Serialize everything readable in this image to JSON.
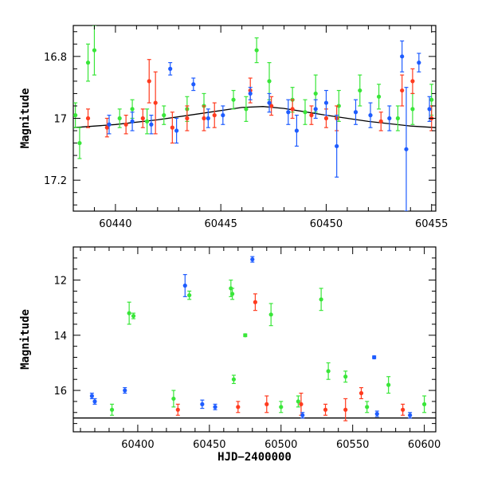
{
  "chart_data": [
    {
      "type": "scatter",
      "panel": "top",
      "xlabel": "",
      "ylabel": "Magnitude",
      "xlim": [
        60438,
        60455.2
      ],
      "ylim": [
        17.3,
        16.7
      ],
      "y_inverted": true,
      "xticks": [
        60440,
        60445,
        60450,
        60455
      ],
      "yticks": [
        16.8,
        17,
        17.2
      ],
      "xtick_labels": [
        "60440",
        "60445",
        "60450",
        "60455"
      ],
      "ytick_labels": [
        "16.8",
        "17",
        "17.2"
      ],
      "grid": false,
      "legend": "none",
      "colors": {
        "green": "#39e639",
        "red": "#ff3b1f",
        "blue": "#1e5cff",
        "curve": "#000000"
      },
      "model_curve": {
        "x": [
          60438,
          60440,
          60442,
          60444,
          60446,
          60447,
          60448,
          60450,
          60452,
          60454,
          60455.2
        ],
        "y": [
          17.03,
          17.02,
          17.005,
          16.985,
          16.965,
          16.962,
          16.968,
          16.99,
          17.01,
          17.025,
          17.03
        ]
      },
      "series": [
        {
          "color": "green",
          "points": [
            {
              "x": 60438.1,
              "y": 16.99,
              "err": 0.04
            },
            {
              "x": 60438.3,
              "y": 17.08,
              "err": 0.05
            },
            {
              "x": 60438.7,
              "y": 16.82,
              "err": 0.06
            },
            {
              "x": 60439.0,
              "y": 16.78,
              "err": 0.08
            },
            {
              "x": 60440.2,
              "y": 17.0,
              "err": 0.03
            },
            {
              "x": 60440.8,
              "y": 16.97,
              "err": 0.03
            },
            {
              "x": 60441.5,
              "y": 17.01,
              "err": 0.04
            },
            {
              "x": 60442.3,
              "y": 16.99,
              "err": 0.03
            },
            {
              "x": 60443.4,
              "y": 16.97,
              "err": 0.04
            },
            {
              "x": 60444.2,
              "y": 16.96,
              "err": 0.04
            },
            {
              "x": 60445.6,
              "y": 16.94,
              "err": 0.03
            },
            {
              "x": 60446.2,
              "y": 16.97,
              "err": 0.04
            },
            {
              "x": 60446.7,
              "y": 16.78,
              "err": 0.04
            },
            {
              "x": 60447.3,
              "y": 16.88,
              "err": 0.06
            },
            {
              "x": 60448.4,
              "y": 16.94,
              "err": 0.04
            },
            {
              "x": 60449.0,
              "y": 16.98,
              "err": 0.04
            },
            {
              "x": 60449.5,
              "y": 16.92,
              "err": 0.06
            },
            {
              "x": 60450.6,
              "y": 16.96,
              "err": 0.05
            },
            {
              "x": 60451.6,
              "y": 16.91,
              "err": 0.05
            },
            {
              "x": 60452.5,
              "y": 16.93,
              "err": 0.04
            },
            {
              "x": 60453.4,
              "y": 17.0,
              "err": 0.04
            },
            {
              "x": 60454.1,
              "y": 16.97,
              "err": 0.05
            },
            {
              "x": 60455.0,
              "y": 16.94,
              "err": 0.05
            }
          ]
        },
        {
          "color": "red",
          "points": [
            {
              "x": 60438.7,
              "y": 17.0,
              "err": 0.03
            },
            {
              "x": 60439.6,
              "y": 17.03,
              "err": 0.03
            },
            {
              "x": 60440.5,
              "y": 17.02,
              "err": 0.03
            },
            {
              "x": 60441.3,
              "y": 17.0,
              "err": 0.03
            },
            {
              "x": 60441.6,
              "y": 16.88,
              "err": 0.07
            },
            {
              "x": 60441.9,
              "y": 16.95,
              "err": 0.1
            },
            {
              "x": 60442.7,
              "y": 17.03,
              "err": 0.05
            },
            {
              "x": 60443.4,
              "y": 17.0,
              "err": 0.04
            },
            {
              "x": 60444.2,
              "y": 17.0,
              "err": 0.04
            },
            {
              "x": 60444.7,
              "y": 16.99,
              "err": 0.04
            },
            {
              "x": 60446.4,
              "y": 16.91,
              "err": 0.04
            },
            {
              "x": 60447.4,
              "y": 16.96,
              "err": 0.03
            },
            {
              "x": 60448.4,
              "y": 16.97,
              "err": 0.03
            },
            {
              "x": 60449.3,
              "y": 16.99,
              "err": 0.03
            },
            {
              "x": 60450.0,
              "y": 17.0,
              "err": 0.03
            },
            {
              "x": 60450.5,
              "y": 17.0,
              "err": 0.04
            },
            {
              "x": 60452.6,
              "y": 17.01,
              "err": 0.03
            },
            {
              "x": 60453.6,
              "y": 16.91,
              "err": 0.05
            },
            {
              "x": 60454.1,
              "y": 16.88,
              "err": 0.04
            },
            {
              "x": 60455.0,
              "y": 17.0,
              "err": 0.04
            }
          ]
        },
        {
          "color": "blue",
          "points": [
            {
              "x": 60439.7,
              "y": 17.02,
              "err": 0.03
            },
            {
              "x": 60440.8,
              "y": 17.01,
              "err": 0.03
            },
            {
              "x": 60441.7,
              "y": 17.02,
              "err": 0.03
            },
            {
              "x": 60442.6,
              "y": 16.84,
              "err": 0.02
            },
            {
              "x": 60442.9,
              "y": 17.04,
              "err": 0.04
            },
            {
              "x": 60443.7,
              "y": 16.89,
              "err": 0.02
            },
            {
              "x": 60444.4,
              "y": 17.0,
              "err": 0.03
            },
            {
              "x": 60445.1,
              "y": 16.99,
              "err": 0.03
            },
            {
              "x": 60446.4,
              "y": 16.92,
              "err": 0.02
            },
            {
              "x": 60447.3,
              "y": 16.95,
              "err": 0.03
            },
            {
              "x": 60448.2,
              "y": 16.98,
              "err": 0.04
            },
            {
              "x": 60448.6,
              "y": 17.04,
              "err": 0.05
            },
            {
              "x": 60449.5,
              "y": 16.97,
              "err": 0.03
            },
            {
              "x": 60450.0,
              "y": 16.95,
              "err": 0.04
            },
            {
              "x": 60450.5,
              "y": 17.09,
              "err": 0.1
            },
            {
              "x": 60451.4,
              "y": 16.98,
              "err": 0.04
            },
            {
              "x": 60452.1,
              "y": 16.99,
              "err": 0.04
            },
            {
              "x": 60453.0,
              "y": 17.0,
              "err": 0.04
            },
            {
              "x": 60453.6,
              "y": 16.8,
              "err": 0.05
            },
            {
              "x": 60453.8,
              "y": 17.1,
              "err": 0.2
            },
            {
              "x": 60454.4,
              "y": 16.82,
              "err": 0.03
            },
            {
              "x": 60454.9,
              "y": 16.97,
              "err": 0.04
            }
          ]
        }
      ]
    },
    {
      "type": "scatter",
      "panel": "bottom",
      "xlabel": "HJD−2400000",
      "ylabel": "Magnitude",
      "xlim": [
        60355,
        60608
      ],
      "ylim": [
        17.5,
        10.8
      ],
      "y_inverted": true,
      "xticks": [
        60400,
        60450,
        60500,
        60550,
        60600
      ],
      "yticks": [
        12,
        14,
        16
      ],
      "xtick_labels": [
        "60400",
        "60450",
        "60500",
        "60550",
        "60600"
      ],
      "ytick_labels": [
        "12",
        "14",
        "16"
      ],
      "grid": false,
      "legend": "none",
      "colors": {
        "green": "#39e639",
        "red": "#ff3b1f",
        "blue": "#1e5cff",
        "curve": "#000000"
      },
      "model_curve": {
        "x": [
          60355,
          60608
        ],
        "y": [
          17.0,
          17.0
        ]
      },
      "series": [
        {
          "color": "green",
          "points": [
            {
              "x": 60394,
              "y": 13.2,
              "err": 0.4
            },
            {
              "x": 60397,
              "y": 13.3,
              "err": 0.1
            },
            {
              "x": 60436,
              "y": 12.55,
              "err": 0.15
            },
            {
              "x": 60465,
              "y": 12.3,
              "err": 0.3
            },
            {
              "x": 60466,
              "y": 12.5,
              "err": 0.2
            },
            {
              "x": 60475,
              "y": 14.0,
              "err": 0.05
            },
            {
              "x": 60493,
              "y": 13.25,
              "err": 0.4
            },
            {
              "x": 60528,
              "y": 12.7,
              "err": 0.4
            },
            {
              "x": 60425,
              "y": 16.3,
              "err": 0.3
            },
            {
              "x": 60467,
              "y": 15.6,
              "err": 0.15
            },
            {
              "x": 60533,
              "y": 15.3,
              "err": 0.3
            },
            {
              "x": 60545,
              "y": 15.5,
              "err": 0.2
            },
            {
              "x": 60575,
              "y": 15.8,
              "err": 0.3
            },
            {
              "x": 60600,
              "y": 16.5,
              "err": 0.3
            },
            {
              "x": 60382,
              "y": 16.7,
              "err": 0.2
            },
            {
              "x": 60500,
              "y": 16.6,
              "err": 0.2
            },
            {
              "x": 60512,
              "y": 16.4,
              "err": 0.2
            },
            {
              "x": 60560,
              "y": 16.6,
              "err": 0.2
            }
          ]
        },
        {
          "color": "red",
          "points": [
            {
              "x": 60482,
              "y": 12.8,
              "err": 0.3
            },
            {
              "x": 60514,
              "y": 16.5,
              "err": 0.4
            },
            {
              "x": 60545,
              "y": 16.7,
              "err": 0.4
            },
            {
              "x": 60556,
              "y": 16.1,
              "err": 0.2
            },
            {
              "x": 60428,
              "y": 16.7,
              "err": 0.2
            },
            {
              "x": 60470,
              "y": 16.6,
              "err": 0.2
            },
            {
              "x": 60490,
              "y": 16.5,
              "err": 0.3
            },
            {
              "x": 60531,
              "y": 16.7,
              "err": 0.2
            },
            {
              "x": 60585,
              "y": 16.7,
              "err": 0.2
            }
          ]
        },
        {
          "color": "blue",
          "points": [
            {
              "x": 60433,
              "y": 12.2,
              "err": 0.4
            },
            {
              "x": 60480,
              "y": 11.25,
              "err": 0.1
            },
            {
              "x": 60565,
              "y": 14.8,
              "err": 0.05
            },
            {
              "x": 60368,
              "y": 16.2,
              "err": 0.1
            },
            {
              "x": 60370,
              "y": 16.4,
              "err": 0.1
            },
            {
              "x": 60391,
              "y": 16.0,
              "err": 0.1
            },
            {
              "x": 60445,
              "y": 16.5,
              "err": 0.15
            },
            {
              "x": 60454,
              "y": 16.6,
              "err": 0.1
            },
            {
              "x": 60515,
              "y": 16.9,
              "err": 0.1
            },
            {
              "x": 60567,
              "y": 16.85,
              "err": 0.1
            },
            {
              "x": 60590,
              "y": 16.9,
              "err": 0.1
            }
          ]
        }
      ]
    }
  ]
}
